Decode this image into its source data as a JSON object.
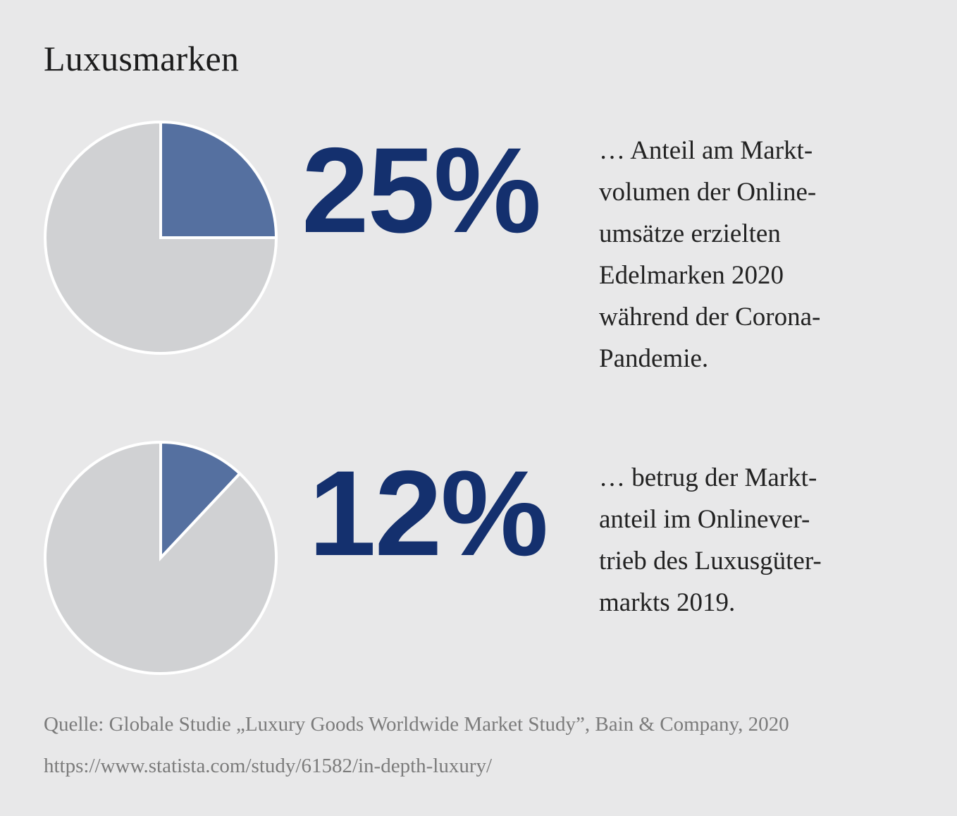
{
  "title": "Luxusmarken",
  "colors": {
    "background": "#e8e8e9",
    "accent": "#14306e",
    "slice_highlight": "#5570a0",
    "slice_rest": "#d0d1d3",
    "pie_stroke": "#ffffff",
    "muted_text": "#7b7b7b"
  },
  "chart_data": [
    {
      "type": "pie",
      "title": "",
      "slices": [
        {
          "label": "",
          "value": 25
        },
        {
          "label": "",
          "value": 75
        }
      ],
      "big_label": "25%",
      "description_lines": [
        "… Anteil am Markt-",
        "volumen der Online-",
        "umsätze erzielten",
        "Edelmarken 2020",
        "während der Corona-",
        "Pandemie."
      ]
    },
    {
      "type": "pie",
      "title": "",
      "slices": [
        {
          "label": "",
          "value": 12
        },
        {
          "label": "",
          "value": 88
        }
      ],
      "big_label": "12%",
      "description_lines": [
        "… betrug der Markt-",
        "anteil im Onlinever-",
        "trieb des Luxusgüter-",
        "markts 2019."
      ]
    }
  ],
  "source": "Quelle: Globale Studie „Luxury Goods Worldwide Market Study”, Bain & Company, 2020",
  "url": "https://www.statista.com/study/61582/in-depth-luxury/"
}
